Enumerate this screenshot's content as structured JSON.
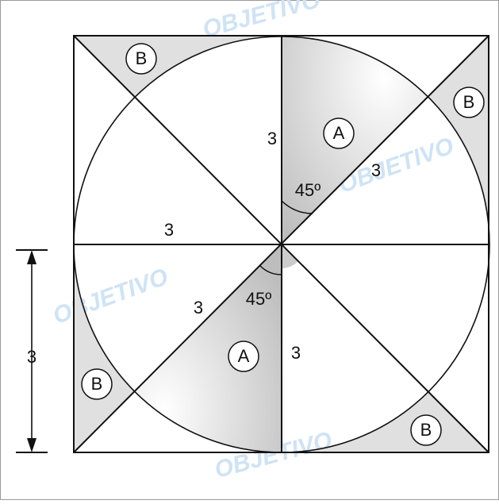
{
  "watermark": "OBJETIVO",
  "labels": [
    "3",
    "A",
    "3",
    "45º",
    "3",
    "3",
    "45º",
    "A",
    "3",
    "B",
    "B",
    "B",
    "B",
    "3"
  ]
}
